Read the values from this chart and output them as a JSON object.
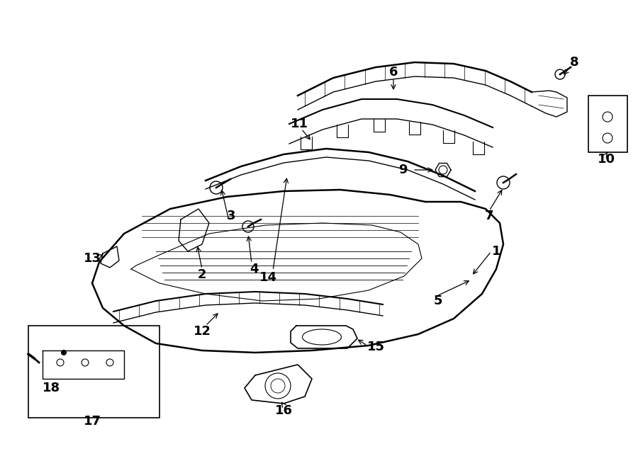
{
  "bg_color": "#ffffff",
  "line_color": "#000000",
  "label_fontsize": 12,
  "fig_width": 9.0,
  "fig_height": 6.61,
  "dpi": 100
}
